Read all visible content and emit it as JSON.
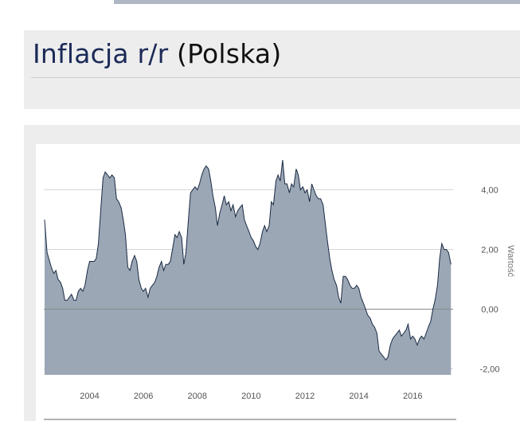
{
  "page": {
    "title_main": "Inflacja r/r",
    "title_country": "(Polska)"
  },
  "colors": {
    "area_fill": "#9ba7b5",
    "area_stroke": "#1a2a44",
    "grid": "#d6d6d6",
    "zero_line": "#8a8a8a"
  },
  "chart_data": {
    "type": "area",
    "ylabel": "Wartość",
    "xlim": [
      2002.3,
      2017.5
    ],
    "ylim": [
      -2.2,
      5.0
    ],
    "yticks": [
      -2,
      0,
      2,
      4
    ],
    "ytick_labels": [
      "-2,00",
      "0,00",
      "2,00",
      "4,00"
    ],
    "xticks": [
      2004,
      2006,
      2008,
      2010,
      2012,
      2014,
      2016
    ],
    "xtick_labels": [
      "2004",
      "2006",
      "2008",
      "2010",
      "2012",
      "2014",
      "2016"
    ],
    "grid": true,
    "series": [
      {
        "points": [
          [
            2002.33,
            3.0
          ],
          [
            2002.42,
            1.9
          ],
          [
            2002.58,
            1.4
          ],
          [
            2002.67,
            1.2
          ],
          [
            2002.75,
            1.3
          ],
          [
            2002.83,
            1.0
          ],
          [
            2002.92,
            0.9
          ],
          [
            2003.0,
            0.7
          ],
          [
            2003.08,
            0.3
          ],
          [
            2003.17,
            0.3
          ],
          [
            2003.25,
            0.4
          ],
          [
            2003.33,
            0.5
          ],
          [
            2003.42,
            0.3
          ],
          [
            2003.5,
            0.3
          ],
          [
            2003.58,
            0.6
          ],
          [
            2003.67,
            0.7
          ],
          [
            2003.75,
            0.6
          ],
          [
            2003.83,
            0.8
          ],
          [
            2003.92,
            1.3
          ],
          [
            2004.0,
            1.6
          ],
          [
            2004.08,
            1.6
          ],
          [
            2004.17,
            1.6
          ],
          [
            2004.25,
            1.7
          ],
          [
            2004.33,
            2.2
          ],
          [
            2004.42,
            3.4
          ],
          [
            2004.5,
            4.4
          ],
          [
            2004.58,
            4.6
          ],
          [
            2004.67,
            4.5
          ],
          [
            2004.75,
            4.4
          ],
          [
            2004.83,
            4.5
          ],
          [
            2004.92,
            4.4
          ],
          [
            2005.0,
            3.7
          ],
          [
            2005.08,
            3.6
          ],
          [
            2005.17,
            3.4
          ],
          [
            2005.25,
            3.0
          ],
          [
            2005.33,
            2.5
          ],
          [
            2005.42,
            1.4
          ],
          [
            2005.5,
            1.3
          ],
          [
            2005.58,
            1.6
          ],
          [
            2005.67,
            1.8
          ],
          [
            2005.75,
            1.6
          ],
          [
            2005.83,
            1.0
          ],
          [
            2005.92,
            0.7
          ],
          [
            2006.0,
            0.6
          ],
          [
            2006.08,
            0.7
          ],
          [
            2006.17,
            0.4
          ],
          [
            2006.25,
            0.7
          ],
          [
            2006.33,
            0.8
          ],
          [
            2006.42,
            0.9
          ],
          [
            2006.5,
            1.1
          ],
          [
            2006.58,
            1.4
          ],
          [
            2006.67,
            1.6
          ],
          [
            2006.75,
            1.3
          ],
          [
            2006.83,
            1.5
          ],
          [
            2006.92,
            1.5
          ],
          [
            2007.0,
            1.6
          ],
          [
            2007.08,
            2.0
          ],
          [
            2007.17,
            2.5
          ],
          [
            2007.25,
            2.4
          ],
          [
            2007.33,
            2.6
          ],
          [
            2007.42,
            2.4
          ],
          [
            2007.5,
            1.5
          ],
          [
            2007.58,
            1.9
          ],
          [
            2007.67,
            3.0
          ],
          [
            2007.75,
            3.9
          ],
          [
            2007.83,
            4.0
          ],
          [
            2007.92,
            4.1
          ],
          [
            2008.0,
            4.0
          ],
          [
            2008.08,
            4.2
          ],
          [
            2008.17,
            4.5
          ],
          [
            2008.25,
            4.7
          ],
          [
            2008.33,
            4.8
          ],
          [
            2008.42,
            4.7
          ],
          [
            2008.5,
            4.3
          ],
          [
            2008.58,
            3.8
          ],
          [
            2008.67,
            3.4
          ],
          [
            2008.75,
            2.8
          ],
          [
            2008.83,
            3.2
          ],
          [
            2008.92,
            3.5
          ],
          [
            2009.0,
            3.8
          ],
          [
            2009.08,
            3.5
          ],
          [
            2009.17,
            3.6
          ],
          [
            2009.25,
            3.3
          ],
          [
            2009.33,
            3.5
          ],
          [
            2009.42,
            3.1
          ],
          [
            2009.5,
            3.3
          ],
          [
            2009.58,
            3.4
          ],
          [
            2009.67,
            3.5
          ],
          [
            2009.75,
            3.0
          ],
          [
            2009.83,
            2.8
          ],
          [
            2009.92,
            2.6
          ],
          [
            2010.0,
            2.4
          ],
          [
            2010.08,
            2.3
          ],
          [
            2010.17,
            2.1
          ],
          [
            2010.25,
            2.0
          ],
          [
            2010.33,
            2.2
          ],
          [
            2010.42,
            2.6
          ],
          [
            2010.5,
            2.8
          ],
          [
            2010.58,
            2.6
          ],
          [
            2010.67,
            2.8
          ],
          [
            2010.75,
            3.6
          ],
          [
            2010.83,
            3.5
          ],
          [
            2010.92,
            4.3
          ],
          [
            2011.0,
            4.5
          ],
          [
            2011.08,
            4.3
          ],
          [
            2011.17,
            5.0
          ],
          [
            2011.25,
            4.2
          ],
          [
            2011.33,
            4.2
          ],
          [
            2011.42,
            3.9
          ],
          [
            2011.5,
            4.2
          ],
          [
            2011.58,
            4.1
          ],
          [
            2011.67,
            4.7
          ],
          [
            2011.75,
            4.5
          ],
          [
            2011.83,
            4.0
          ],
          [
            2011.92,
            4.1
          ],
          [
            2012.0,
            3.9
          ],
          [
            2012.08,
            4.0
          ],
          [
            2012.17,
            3.6
          ],
          [
            2012.25,
            4.2
          ],
          [
            2012.33,
            4.0
          ],
          [
            2012.42,
            3.8
          ],
          [
            2012.5,
            3.7
          ],
          [
            2012.58,
            3.7
          ],
          [
            2012.67,
            3.5
          ],
          [
            2012.75,
            2.9
          ],
          [
            2012.83,
            2.3
          ],
          [
            2012.92,
            1.7
          ],
          [
            2013.0,
            1.3
          ],
          [
            2013.08,
            1.0
          ],
          [
            2013.17,
            0.8
          ],
          [
            2013.25,
            0.4
          ],
          [
            2013.33,
            0.2
          ],
          [
            2013.42,
            1.1
          ],
          [
            2013.5,
            1.1
          ],
          [
            2013.58,
            1.0
          ],
          [
            2013.67,
            0.8
          ],
          [
            2013.75,
            0.7
          ],
          [
            2013.83,
            0.7
          ],
          [
            2013.92,
            0.8
          ],
          [
            2014.0,
            0.7
          ],
          [
            2014.08,
            0.4
          ],
          [
            2014.17,
            0.2
          ],
          [
            2014.25,
            0.0
          ],
          [
            2014.33,
            -0.2
          ],
          [
            2014.42,
            -0.3
          ],
          [
            2014.5,
            -0.5
          ],
          [
            2014.58,
            -0.6
          ],
          [
            2014.67,
            -0.8
          ],
          [
            2014.75,
            -1.4
          ],
          [
            2014.83,
            -1.5
          ],
          [
            2014.92,
            -1.6
          ],
          [
            2015.0,
            -1.7
          ],
          [
            2015.08,
            -1.6
          ],
          [
            2015.17,
            -1.2
          ],
          [
            2015.25,
            -1.0
          ],
          [
            2015.33,
            -0.9
          ],
          [
            2015.42,
            -0.8
          ],
          [
            2015.5,
            -0.7
          ],
          [
            2015.58,
            -0.9
          ],
          [
            2015.67,
            -0.8
          ],
          [
            2015.75,
            -0.7
          ],
          [
            2015.83,
            -0.5
          ],
          [
            2015.92,
            -1.0
          ],
          [
            2016.0,
            -0.9
          ],
          [
            2016.08,
            -1.0
          ],
          [
            2016.17,
            -1.2
          ],
          [
            2016.25,
            -1.0
          ],
          [
            2016.33,
            -0.9
          ],
          [
            2016.42,
            -1.0
          ],
          [
            2016.5,
            -0.8
          ],
          [
            2016.58,
            -0.6
          ],
          [
            2016.67,
            -0.4
          ],
          [
            2016.75,
            0.0
          ],
          [
            2016.83,
            0.3
          ],
          [
            2016.92,
            0.8
          ],
          [
            2017.0,
            1.7
          ],
          [
            2017.08,
            2.2
          ],
          [
            2017.17,
            2.0
          ],
          [
            2017.25,
            2.0
          ],
          [
            2017.33,
            1.9
          ],
          [
            2017.42,
            1.5
          ]
        ]
      }
    ]
  }
}
